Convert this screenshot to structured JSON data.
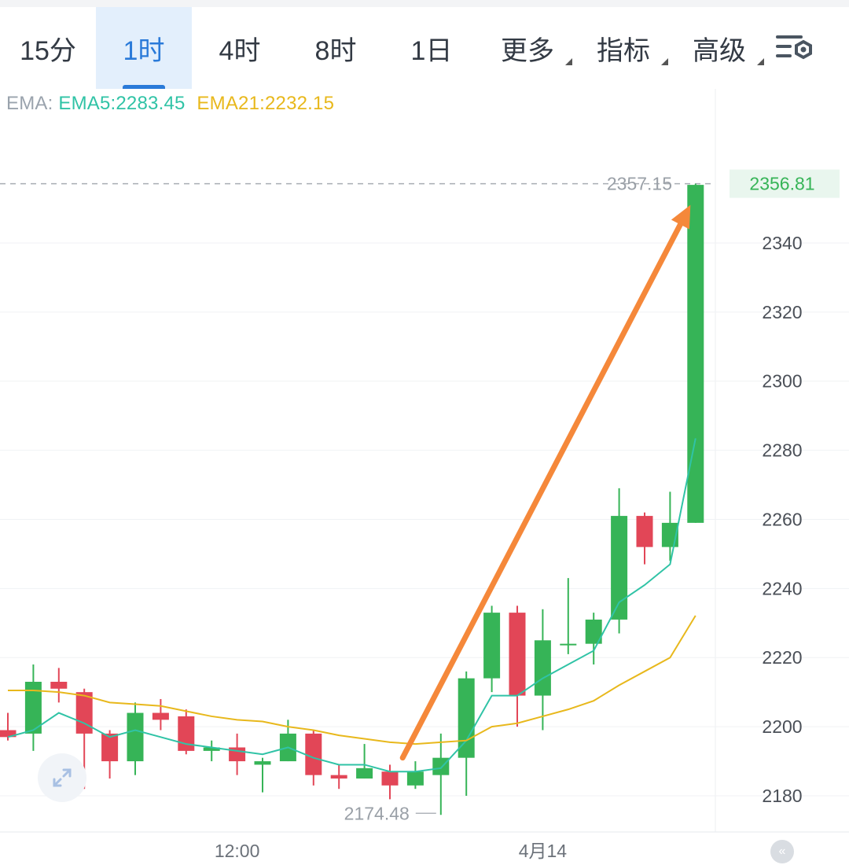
{
  "tabs": [
    {
      "label": "15分",
      "active": false,
      "has_menu": false
    },
    {
      "label": "1时",
      "active": true,
      "has_menu": false
    },
    {
      "label": "4时",
      "active": false,
      "has_menu": false
    },
    {
      "label": "8时",
      "active": false,
      "has_menu": false
    },
    {
      "label": "1日",
      "active": false,
      "has_menu": false
    },
    {
      "label": "更多",
      "active": false,
      "has_menu": true
    },
    {
      "label": "指标",
      "active": false,
      "has_menu": true
    },
    {
      "label": "高级",
      "active": false,
      "has_menu": true
    }
  ],
  "settings_icon": "chart-settings-icon",
  "ema_legend": {
    "label": "EMA:",
    "ema5": "EMA5:2283.45",
    "ema21": "EMA21:2232.15"
  },
  "colors": {
    "up": "#36b457",
    "down": "#e24657",
    "ema5": "#30c3a6",
    "ema21": "#e8b81c",
    "arrow": "#f5883a",
    "accent": "#2a7ad9"
  },
  "chart_data": {
    "type": "candlestick",
    "ylim": [
      2170,
      2370
    ],
    "y_ticks": [
      2180,
      2200,
      2220,
      2240,
      2260,
      2280,
      2300,
      2320,
      2340
    ],
    "x_labels": [
      {
        "label": "12:00",
        "index": 9
      },
      {
        "label": "4月14",
        "index": 21
      }
    ],
    "high_marker": {
      "label": "2357.15",
      "value": 2357.15
    },
    "low_marker": {
      "label": "2174.48",
      "value": 2174.48
    },
    "current_price": {
      "label": "2356.81",
      "value": 2356.81
    },
    "candles": [
      {
        "o": 2199,
        "c": 2197,
        "h": 2204,
        "l": 2196
      },
      {
        "o": 2198,
        "c": 2213,
        "h": 2218,
        "l": 2193
      },
      {
        "o": 2213,
        "c": 2211,
        "h": 2217,
        "l": 2207
      },
      {
        "o": 2210,
        "c": 2198,
        "h": 2211,
        "l": 2182
      },
      {
        "o": 2198,
        "c": 2190,
        "h": 2199,
        "l": 2185
      },
      {
        "o": 2190,
        "c": 2204,
        "h": 2207,
        "l": 2186
      },
      {
        "o": 2204,
        "c": 2202,
        "h": 2208,
        "l": 2199
      },
      {
        "o": 2203,
        "c": 2193,
        "h": 2205,
        "l": 2192
      },
      {
        "o": 2193,
        "c": 2194,
        "h": 2196,
        "l": 2190
      },
      {
        "o": 2194,
        "c": 2190,
        "h": 2198,
        "l": 2186
      },
      {
        "o": 2189,
        "c": 2190,
        "h": 2191,
        "l": 2181
      },
      {
        "o": 2190,
        "c": 2198,
        "h": 2202,
        "l": 2190
      },
      {
        "o": 2198,
        "c": 2186,
        "h": 2199,
        "l": 2183
      },
      {
        "o": 2186,
        "c": 2185,
        "h": 2189,
        "l": 2182
      },
      {
        "o": 2185,
        "c": 2188,
        "h": 2195,
        "l": 2185
      },
      {
        "o": 2187,
        "c": 2183,
        "h": 2189,
        "l": 2179
      },
      {
        "o": 2183,
        "c": 2187,
        "h": 2190,
        "l": 2182
      },
      {
        "o": 2186,
        "c": 2191,
        "h": 2198,
        "l": 2174.48
      },
      {
        "o": 2191,
        "c": 2214,
        "h": 2216,
        "l": 2180
      },
      {
        "o": 2214,
        "c": 2233,
        "h": 2235,
        "l": 2210
      },
      {
        "o": 2233,
        "c": 2209,
        "h": 2235,
        "l": 2200
      },
      {
        "o": 2209,
        "c": 2225,
        "h": 2234,
        "l": 2199
      },
      {
        "o": 2224,
        "c": 2224,
        "h": 2243,
        "l": 2221
      },
      {
        "o": 2224,
        "c": 2231,
        "h": 2233,
        "l": 2218
      },
      {
        "o": 2231,
        "c": 2261,
        "h": 2269,
        "l": 2227
      },
      {
        "o": 2261,
        "c": 2252,
        "h": 2262,
        "l": 2247
      },
      {
        "o": 2252,
        "c": 2259,
        "h": 2268,
        "l": 2248
      },
      {
        "o": 2259,
        "c": 2356.81,
        "h": 2357.15,
        "l": 2259
      }
    ],
    "series": [
      {
        "name": "EMA5",
        "values": [
          2197,
          2199,
          2204,
          2201,
          2197,
          2199,
          2197,
          2195,
          2194,
          2193,
          2192,
          2194,
          2191,
          2189,
          2189,
          2187,
          2187,
          2188,
          2196,
          2209,
          2209,
          2214,
          2218,
          2222,
          2236,
          2241,
          2247,
          2283.45
        ]
      },
      {
        "name": "EMA21",
        "values": [
          2210.5,
          2210.5,
          2210,
          2209,
          2207,
          2206.5,
          2206,
          2204.5,
          2203,
          2202,
          2201.5,
          2200,
          2199,
          2197.5,
          2196.5,
          2195.5,
          2195,
          2195.5,
          2196,
          2200,
          2201,
          2203,
          2205,
          2207.5,
          2212,
          2216,
          2220,
          2232.15
        ]
      }
    ],
    "annotation_arrow": {
      "from": {
        "index": 15.5,
        "value": 2191
      },
      "to": {
        "index": 26.8,
        "value": 2351
      }
    }
  }
}
